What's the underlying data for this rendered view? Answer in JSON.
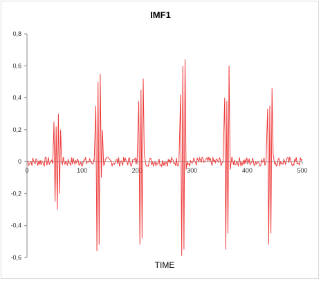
{
  "chart_data": {
    "type": "line",
    "title": "IMF1",
    "xlabel": "TIME",
    "ylabel": "",
    "xlim": [
      0,
      500
    ],
    "ylim": [
      -0.6,
      0.8
    ],
    "x_ticks": [
      "0",
      "100",
      "200",
      "300",
      "400",
      "500"
    ],
    "y_ticks": [
      "0,8",
      "0,6",
      "0,4",
      "0,2",
      "0",
      "-0,2",
      "-0,4",
      "-0,6"
    ],
    "grid": false,
    "series_color": "#ee3b3b",
    "series": [
      {
        "bursts": [
          {
            "x": [
              47,
              49,
              51,
              53,
              55,
              57,
              59,
              61,
              63
            ],
            "y": [
              0.0,
              0.25,
              -0.25,
              0.22,
              -0.3,
              0.3,
              -0.2,
              0.2,
              0.0
            ]
          },
          {
            "x": [
              122,
              125,
              127,
              129,
              131,
              133,
              135,
              137,
              139
            ],
            "y": [
              0.0,
              0.35,
              -0.56,
              0.5,
              -0.52,
              0.55,
              -0.1,
              0.2,
              0.0
            ]
          },
          {
            "x": [
              200,
              203,
              205,
              207,
              209,
              211,
              213,
              215
            ],
            "y": [
              0.0,
              0.38,
              -0.52,
              0.45,
              -0.48,
              0.52,
              0.05,
              0.0
            ]
          },
          {
            "x": [
              276,
              279,
              281,
              283,
              285,
              287,
              289,
              291
            ],
            "y": [
              0.0,
              0.42,
              -0.59,
              0.6,
              -0.55,
              0.64,
              -0.05,
              0.0
            ]
          },
          {
            "x": [
              356,
              359,
              361,
              363,
              365,
              367,
              369,
              371
            ],
            "y": [
              0.0,
              0.4,
              -0.55,
              0.38,
              -0.45,
              0.6,
              -0.05,
              0.0
            ]
          },
          {
            "x": [
              434,
              437,
              439,
              441,
              443,
              445,
              447,
              449
            ],
            "y": [
              0.0,
              0.33,
              -0.52,
              0.35,
              -0.45,
              0.46,
              0.05,
              0.0
            ]
          }
        ],
        "noise_amplitude": 0.03
      }
    ]
  }
}
